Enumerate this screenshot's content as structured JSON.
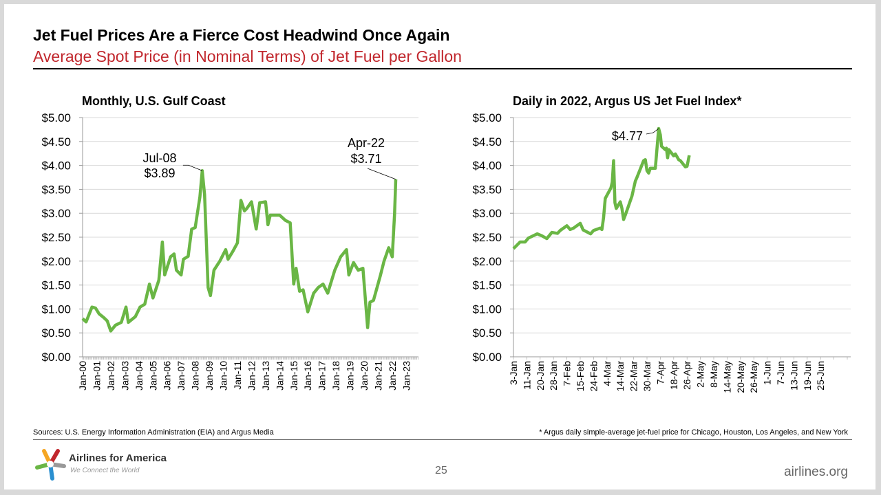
{
  "header": {
    "title": "Jet Fuel Prices Are a Fierce Cost Headwind Once Again",
    "subtitle": "Average Spot Price (in Nominal Terms) of Jet Fuel per Gallon"
  },
  "footer": {
    "sources": "Sources: U.S. Energy Information Administration (EIA) and Argus Media",
    "footnote": "* Argus daily simple-average jet-fuel price for Chicago, Houston, Los Angeles, and New York",
    "page_number": "25",
    "website": "airlines.org",
    "logo_name": "Airlines for America",
    "logo_tagline": "We Connect the World"
  },
  "colors": {
    "line": "#6ab645",
    "subtitle": "#c1272d",
    "grid": "#d9d9d9"
  },
  "chart_data": [
    {
      "type": "line",
      "title": "Monthly, U.S. Gulf Coast",
      "ylim": [
        0,
        5
      ],
      "yticks": [
        "$0.00",
        "$0.50",
        "$1.00",
        "$1.50",
        "$2.00",
        "$2.50",
        "$3.00",
        "$3.50",
        "$4.00",
        "$4.50",
        "$5.00"
      ],
      "xticks": [
        "Jan-00",
        "Jan-01",
        "Jan-02",
        "Jan-03",
        "Jan-04",
        "Jan-05",
        "Jan-06",
        "Jan-07",
        "Jan-08",
        "Jan-09",
        "Jan-10",
        "Jan-11",
        "Jan-12",
        "Jan-13",
        "Jan-14",
        "Jan-15",
        "Jan-16",
        "Jan-17",
        "Jan-18",
        "Jan-19",
        "Jan-20",
        "Jan-21",
        "Jan-22",
        "Jan-23"
      ],
      "grid": true,
      "annotations": [
        {
          "label": "Jul-08",
          "value_label": "$3.89",
          "x": "2008-07",
          "y": 3.89
        },
        {
          "label": "Apr-22",
          "value_label": "$3.71",
          "x": "2022-04",
          "y": 3.71
        }
      ],
      "points": [
        [
          "2000-01",
          0.8
        ],
        [
          "2000-04",
          0.73
        ],
        [
          "2000-09",
          1.04
        ],
        [
          "2000-12",
          1.02
        ],
        [
          "2001-03",
          0.9
        ],
        [
          "2001-07",
          0.82
        ],
        [
          "2001-10",
          0.75
        ],
        [
          "2002-01",
          0.54
        ],
        [
          "2002-05",
          0.66
        ],
        [
          "2002-10",
          0.72
        ],
        [
          "2003-02",
          1.04
        ],
        [
          "2003-04",
          0.72
        ],
        [
          "2003-10",
          0.84
        ],
        [
          "2004-02",
          1.04
        ],
        [
          "2004-06",
          1.1
        ],
        [
          "2004-10",
          1.52
        ],
        [
          "2005-01",
          1.23
        ],
        [
          "2005-06",
          1.6
        ],
        [
          "2005-09",
          2.4
        ],
        [
          "2005-11",
          1.71
        ],
        [
          "2006-04",
          2.09
        ],
        [
          "2006-07",
          2.15
        ],
        [
          "2006-09",
          1.81
        ],
        [
          "2007-01",
          1.71
        ],
        [
          "2007-03",
          2.04
        ],
        [
          "2007-07",
          2.1
        ],
        [
          "2007-10",
          2.67
        ],
        [
          "2008-01",
          2.7
        ],
        [
          "2008-05",
          3.34
        ],
        [
          "2008-07",
          3.89
        ],
        [
          "2008-09",
          3.39
        ],
        [
          "2008-12",
          1.45
        ],
        [
          "2009-02",
          1.28
        ],
        [
          "2009-05",
          1.81
        ],
        [
          "2009-10",
          2.0
        ],
        [
          "2010-03",
          2.24
        ],
        [
          "2010-05",
          2.04
        ],
        [
          "2010-09",
          2.2
        ],
        [
          "2011-01",
          2.38
        ],
        [
          "2011-04",
          3.27
        ],
        [
          "2011-07",
          3.05
        ],
        [
          "2011-09",
          3.1
        ],
        [
          "2012-01",
          3.24
        ],
        [
          "2012-05",
          2.67
        ],
        [
          "2012-08",
          3.22
        ],
        [
          "2013-01",
          3.24
        ],
        [
          "2013-03",
          2.76
        ],
        [
          "2013-05",
          2.96
        ],
        [
          "2014-01",
          2.96
        ],
        [
          "2014-06",
          2.85
        ],
        [
          "2014-10",
          2.8
        ],
        [
          "2015-01",
          1.52
        ],
        [
          "2015-03",
          1.85
        ],
        [
          "2015-06",
          1.37
        ],
        [
          "2015-09",
          1.4
        ],
        [
          "2016-01",
          0.94
        ],
        [
          "2016-06",
          1.33
        ],
        [
          "2016-10",
          1.45
        ],
        [
          "2017-02",
          1.52
        ],
        [
          "2017-06",
          1.33
        ],
        [
          "2017-12",
          1.81
        ],
        [
          "2018-05",
          2.09
        ],
        [
          "2018-10",
          2.24
        ],
        [
          "2018-12",
          1.71
        ],
        [
          "2019-04",
          1.97
        ],
        [
          "2019-08",
          1.81
        ],
        [
          "2019-12",
          1.85
        ],
        [
          "2020-04",
          0.61
        ],
        [
          "2020-06",
          1.14
        ],
        [
          "2020-09",
          1.18
        ],
        [
          "2021-03",
          1.71
        ],
        [
          "2021-06",
          2.0
        ],
        [
          "2021-10",
          2.28
        ],
        [
          "2022-01",
          2.09
        ],
        [
          "2022-03",
          3.0
        ],
        [
          "2022-04",
          3.71
        ]
      ]
    },
    {
      "type": "line",
      "title": "Daily in 2022, Argus US Jet Fuel Index*",
      "ylim": [
        0,
        5
      ],
      "yticks": [
        "$0.00",
        "$0.50",
        "$1.00",
        "$1.50",
        "$2.00",
        "$2.50",
        "$3.00",
        "$3.50",
        "$4.00",
        "$4.50",
        "$5.00"
      ],
      "xticks": [
        "3-Jan",
        "11-Jan",
        "20-Jan",
        "28-Jan",
        "7-Feb",
        "15-Feb",
        "24-Feb",
        "4-Mar",
        "14-Mar",
        "22-Mar",
        "30-Mar",
        "7-Apr",
        "18-Apr",
        "26-Apr",
        "2-May",
        "8-May",
        "14-May",
        "20-May",
        "26-May",
        "1-Jun",
        "7-Jun",
        "13-Jun",
        "19-Jun",
        "25-Jun"
      ],
      "grid": true,
      "annotations": [
        {
          "value_label": "$4.77",
          "x": "2022-04-06",
          "y": 4.77
        }
      ],
      "points": [
        [
          "2022-01-03",
          2.26
        ],
        [
          "2022-01-07",
          2.4
        ],
        [
          "2022-01-10",
          2.4
        ],
        [
          "2022-01-12",
          2.48
        ],
        [
          "2022-01-18",
          2.57
        ],
        [
          "2022-01-21",
          2.53
        ],
        [
          "2022-01-24",
          2.47
        ],
        [
          "2022-01-27",
          2.6
        ],
        [
          "2022-01-31",
          2.58
        ],
        [
          "2022-02-02",
          2.64
        ],
        [
          "2022-02-07",
          2.74
        ],
        [
          "2022-02-09",
          2.66
        ],
        [
          "2022-02-11",
          2.69
        ],
        [
          "2022-02-15",
          2.79
        ],
        [
          "2022-02-17",
          2.65
        ],
        [
          "2022-02-22",
          2.57
        ],
        [
          "2022-02-24",
          2.64
        ],
        [
          "2022-02-28",
          2.69
        ],
        [
          "2022-03-01",
          2.66
        ],
        [
          "2022-03-02",
          2.91
        ],
        [
          "2022-03-03",
          3.31
        ],
        [
          "2022-03-07",
          3.53
        ],
        [
          "2022-03-08",
          3.65
        ],
        [
          "2022-03-09",
          4.1
        ],
        [
          "2022-03-10",
          3.22
        ],
        [
          "2022-03-11",
          3.1
        ],
        [
          "2022-03-14",
          3.24
        ],
        [
          "2022-03-15",
          3.1
        ],
        [
          "2022-03-16",
          2.87
        ],
        [
          "2022-03-17",
          2.96
        ],
        [
          "2022-03-21",
          3.36
        ],
        [
          "2022-03-23",
          3.67
        ],
        [
          "2022-03-24",
          3.75
        ],
        [
          "2022-03-28",
          4.1
        ],
        [
          "2022-03-29",
          4.12
        ],
        [
          "2022-03-30",
          3.89
        ],
        [
          "2022-03-31",
          3.84
        ],
        [
          "2022-04-01",
          3.94
        ],
        [
          "2022-04-04",
          3.94
        ],
        [
          "2022-04-06",
          4.77
        ],
        [
          "2022-04-07",
          4.64
        ],
        [
          "2022-04-08",
          4.4
        ],
        [
          "2022-04-11",
          4.33
        ],
        [
          "2022-04-12",
          4.36
        ],
        [
          "2022-04-13",
          4.16
        ],
        [
          "2022-04-14",
          4.33
        ],
        [
          "2022-04-18",
          4.2
        ],
        [
          "2022-04-19",
          4.24
        ],
        [
          "2022-04-21",
          4.12
        ],
        [
          "2022-04-22",
          4.1
        ],
        [
          "2022-04-25",
          3.97
        ],
        [
          "2022-04-26",
          3.98
        ],
        [
          "2022-04-27",
          4.21
        ]
      ]
    }
  ]
}
